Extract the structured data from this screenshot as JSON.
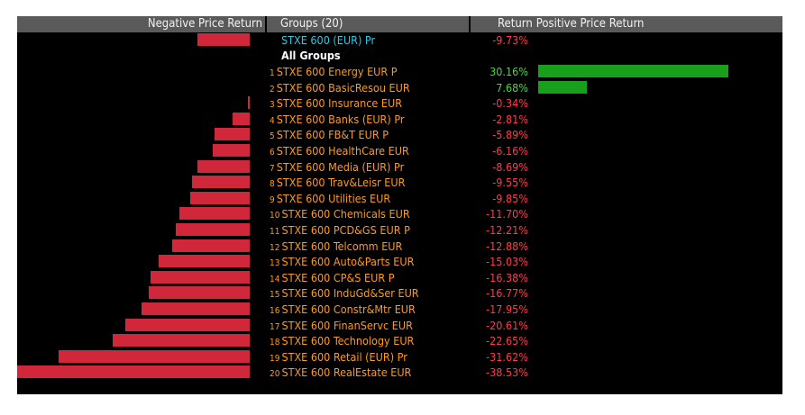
{
  "header": {
    "negative_label": "Negative Price Return",
    "groups_label": "Groups (20)",
    "return_label": "Return",
    "positive_label": "Positive Price Return"
  },
  "index_row": {
    "name": "STXE 600 (EUR) Pr",
    "value": -9.73,
    "value_text": "-9.73%"
  },
  "all_groups_label": "All Groups",
  "colors": {
    "negative": "#d0273a",
    "positive": "#18a01c",
    "label": "#ff9a1f",
    "index_label": "#33c7e0",
    "negative_text": "#ff3b4c",
    "positive_text": "#4dd54a",
    "header_bg": "#5a5a5a",
    "background": "#000000"
  },
  "chart_data": {
    "type": "bar",
    "orientation": "horizontal",
    "categories": [
      "STXE 600 Energy EUR P",
      "STXE 600 BasicResou EUR",
      "STXE 600 Insurance EUR",
      "STXE 600 Banks (EUR) Pr",
      "STXE 600 FB&T EUR P",
      "STXE 600 HealthCare EUR",
      "STXE 600 Media (EUR) Pr",
      "STXE 600 Trav&Leisr EUR",
      "STXE 600 Utilities EUR",
      "STXE 600 Chemicals EUR",
      "STXE 600 PCD&GS EUR P",
      "STXE 600 Telcomm EUR",
      "STXE 600 Auto&Parts EUR",
      "STXE 600 CP&S EUR P",
      "STXE 600 InduGd&Ser EUR",
      "STXE 600 Constr&Mtr EUR",
      "STXE 600 FinanServc EUR",
      "STXE 600 Technology EUR",
      "STXE 600 Retail (EUR) Pr",
      "STXE 600 RealEstate EUR"
    ],
    "ranks": [
      "1",
      "2",
      "3",
      "4",
      "5",
      "6",
      "7",
      "8",
      "9",
      "10",
      "11",
      "12",
      "13",
      "14",
      "15",
      "16",
      "17",
      "18",
      "19",
      "20"
    ],
    "values": [
      30.16,
      7.68,
      -0.34,
      -2.81,
      -5.89,
      -6.16,
      -8.69,
      -9.55,
      -9.85,
      -11.7,
      -12.21,
      -12.88,
      -15.03,
      -16.38,
      -16.77,
      -17.95,
      -20.61,
      -22.65,
      -31.62,
      -38.53
    ],
    "value_labels": [
      "30.16%",
      "7.68%",
      "-0.34%",
      "-2.81%",
      "-5.89%",
      "-6.16%",
      "-8.69%",
      "-9.55%",
      "-9.85%",
      "-11.70%",
      "-12.21%",
      "-12.88%",
      "-15.03%",
      "-16.38%",
      "-16.77%",
      "-17.95%",
      "-20.61%",
      "-22.65%",
      "-31.62%",
      "-38.53%"
    ],
    "xlim": [
      -38.53,
      30.16
    ],
    "grid": false
  }
}
